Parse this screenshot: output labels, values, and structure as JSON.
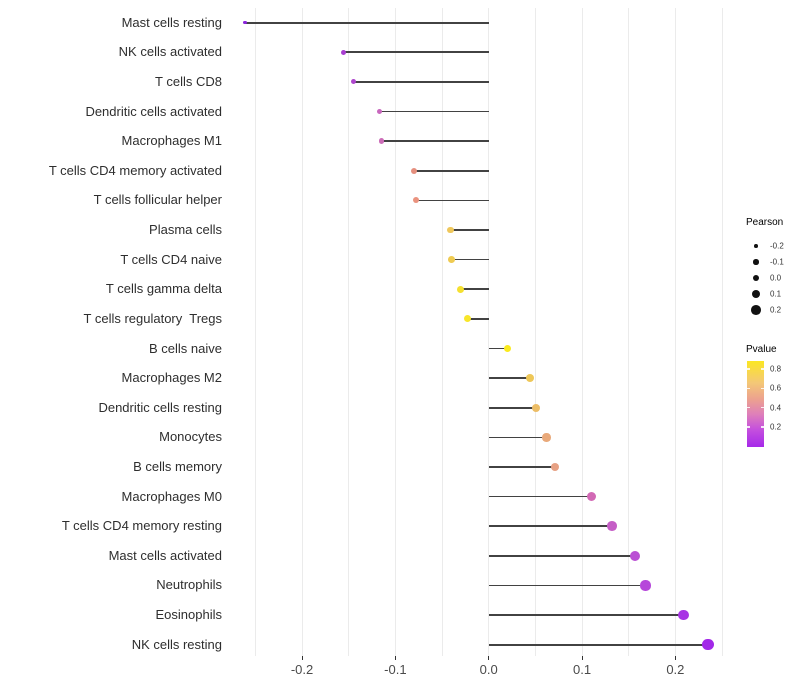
{
  "chart_data": {
    "type": "lollipop",
    "title": "",
    "xlabel": "",
    "ylabel": "",
    "xlim": [
      -0.275,
      0.269
    ],
    "grid": true,
    "x_tick_labels": [
      "-0.2",
      "-0.1",
      "0.0",
      "0.1",
      "0.2"
    ],
    "x_tick_values": [
      -0.2,
      -0.1,
      0.0,
      0.1,
      0.2
    ],
    "gridline_values": [
      -0.25,
      -0.2,
      -0.15,
      -0.1,
      -0.05,
      0.0,
      0.05,
      0.1,
      0.15,
      0.2,
      0.25
    ],
    "points": [
      {
        "label": "Mast cells resting",
        "pearson": -0.261,
        "pvalue_est": 0.07,
        "color": "#8B24DC"
      },
      {
        "label": "NK cells activated",
        "pearson": -0.156,
        "pvalue_est": 0.16,
        "color": "#A93FD1"
      },
      {
        "label": "T cells CD8",
        "pearson": -0.145,
        "pvalue_est": 0.18,
        "color": "#AE47CD"
      },
      {
        "label": "Dendritic cells activated",
        "pearson": -0.117,
        "pvalue_est": 0.3,
        "color": "#C867BE"
      },
      {
        "label": "Macrophages M1",
        "pearson": -0.115,
        "pvalue_est": 0.32,
        "color": "#CC6DB8"
      },
      {
        "label": "T cells CD4 memory activated",
        "pearson": -0.08,
        "pvalue_est": 0.5,
        "color": "#E58F7E"
      },
      {
        "label": "T cells follicular helper",
        "pearson": -0.078,
        "pvalue_est": 0.52,
        "color": "#EA937F"
      },
      {
        "label": "Plasma cells",
        "pearson": -0.041,
        "pvalue_est": 0.67,
        "color": "#EFC75B"
      },
      {
        "label": "T cells CD4 naive",
        "pearson": -0.04,
        "pvalue_est": 0.67,
        "color": "#EFCB52"
      },
      {
        "label": "T cells gamma delta",
        "pearson": -0.03,
        "pvalue_est": 0.77,
        "color": "#F5E030"
      },
      {
        "label": "T cells regulatory  Tregs",
        "pearson": -0.023,
        "pvalue_est": 0.79,
        "color": "#F8E62A"
      },
      {
        "label": "B cells naive",
        "pearson": 0.02,
        "pvalue_est": 0.81,
        "color": "#FAEA1E"
      },
      {
        "label": "Macrophages M2",
        "pearson": 0.044,
        "pvalue_est": 0.67,
        "color": "#EEC758"
      },
      {
        "label": "Dendritic cells resting",
        "pearson": 0.051,
        "pvalue_est": 0.63,
        "color": "#ECBD66"
      },
      {
        "label": "Monocytes",
        "pearson": 0.062,
        "pvalue_est": 0.57,
        "color": "#E9A97A"
      },
      {
        "label": "B cells memory",
        "pearson": 0.071,
        "pvalue_est": 0.53,
        "color": "#E7A184"
      },
      {
        "label": "Macrophages M0",
        "pearson": 0.11,
        "pvalue_est": 0.33,
        "color": "#D269B5"
      },
      {
        "label": "T cells CD4 memory resting",
        "pearson": 0.132,
        "pvalue_est": 0.27,
        "color": "#C55EC6"
      },
      {
        "label": "Mast cells activated",
        "pearson": 0.157,
        "pvalue_est": 0.21,
        "color": "#BA50D4"
      },
      {
        "label": "Neutrophils",
        "pearson": 0.168,
        "pvalue_est": 0.19,
        "color": "#B648DA"
      },
      {
        "label": "Eosinophils",
        "pearson": 0.209,
        "pvalue_est": 0.11,
        "color": "#A834E4"
      },
      {
        "label": "NK cells resting",
        "pearson": 0.235,
        "pvalue_est": 0.06,
        "color": "#A228E8"
      }
    ],
    "legend_size": {
      "title": "Pearson",
      "values": [
        -0.2,
        -0.1,
        0.0,
        0.1,
        0.2
      ],
      "labels": [
        "-0.2",
        "-0.1",
        "0.0",
        "0.1",
        "0.2"
      ]
    },
    "legend_color": {
      "title": "Pvalue",
      "tick_labels": [
        "0.8",
        "0.6",
        "0.4",
        "0.2"
      ],
      "gradient_stops": [
        {
          "offset": 0,
          "color": "#FBE723"
        },
        {
          "offset": 25,
          "color": "#F4C876"
        },
        {
          "offset": 45,
          "color": "#ECA090"
        },
        {
          "offset": 62,
          "color": "#DE7FBA"
        },
        {
          "offset": 80,
          "color": "#C44FDE"
        },
        {
          "offset": 100,
          "color": "#A629E9"
        }
      ]
    }
  },
  "colors": {
    "background": "#FFFFFF",
    "gridline": "#EBEBEB",
    "stem": "#424242",
    "axis_text": "#4A4A4A",
    "category_text": "#2E2E2E",
    "legend_dot": "#111111"
  }
}
